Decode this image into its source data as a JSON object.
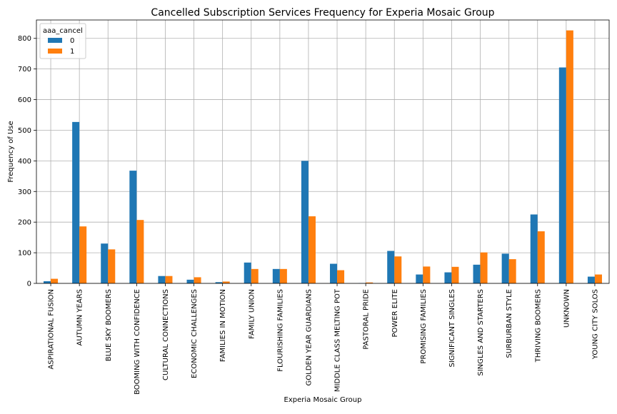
{
  "chart_data": {
    "type": "bar",
    "title": "Cancelled Subscription Services Frequency for Experia Mosaic Group",
    "xlabel": "Experia Mosaic Group",
    "ylabel": "Frequency of Use",
    "ylim": [
      0,
      860
    ],
    "yticks": [
      0,
      100,
      200,
      300,
      400,
      500,
      600,
      700,
      800
    ],
    "grid": true,
    "legend_title": "aaa_cancel",
    "legend_position": "top-left",
    "categories": [
      "ASPIRATIONAL FUSION",
      "AUTUMN YEARS",
      "BLUE SKY BOOMERS",
      "BOOMING WITH CONFIDENCE",
      "CULTURAL CONNECTIONS",
      "ECONOMIC CHALLENGES",
      "FAMILIES IN MOTION",
      "FAMILY UNION",
      "FLOURISHING FAMILIES",
      "GOLDEN YEAR GUARDIANS",
      "MIDDLE CLASS MELTING POT",
      "PASTORAL PRIDE",
      "POWER ELITE",
      "PROMISING FAMILIES",
      "SIGNIFICANT SINGLES",
      "SINGLES AND STARTERS",
      "SURBURBAN STYLE",
      "THRIVING BOOMERS",
      "UNKNOWN",
      "YOUNG CITY SOLOS"
    ],
    "series": [
      {
        "name": "0",
        "color": "#1f77b4",
        "values": [
          7,
          527,
          130,
          368,
          24,
          12,
          4,
          68,
          47,
          400,
          64,
          1,
          106,
          29,
          36,
          61,
          97,
          225,
          705,
          22
        ]
      },
      {
        "name": "1",
        "color": "#ff7f0e",
        "values": [
          15,
          186,
          111,
          207,
          24,
          20,
          6,
          47,
          47,
          219,
          43,
          3,
          88,
          55,
          54,
          101,
          79,
          170,
          826,
          29
        ]
      }
    ]
  }
}
